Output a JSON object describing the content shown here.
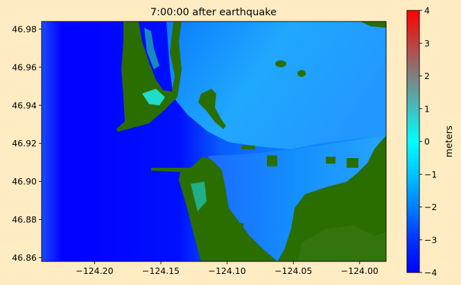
{
  "figure": {
    "title": "7:00:00 after earthquake",
    "background_color": "#ffecc2"
  },
  "chart_data": {
    "type": "heatmap",
    "title": "7:00:00 after earthquake",
    "xlabel": "",
    "ylabel": "",
    "xlim": [
      -124.24,
      -123.98
    ],
    "ylim": [
      46.858,
      46.984
    ],
    "xticks": [
      -124.2,
      -124.15,
      -124.1,
      -124.05,
      -124.0
    ],
    "xtick_labels": [
      "−124.20",
      "−124.15",
      "−124.10",
      "−124.05",
      "−124.00"
    ],
    "yticks": [
      46.86,
      46.88,
      46.9,
      46.92,
      46.94,
      46.96,
      46.98
    ],
    "ytick_labels": [
      "46.86",
      "46.88",
      "46.90",
      "46.92",
      "46.94",
      "46.96",
      "46.98"
    ],
    "grid": false,
    "land_color": "#2a6e00",
    "colorbar": {
      "label": "meters",
      "min": -4,
      "max": 4,
      "ticks": [
        -4,
        -3,
        -2,
        -1,
        0,
        1,
        2,
        3,
        4
      ],
      "tick_labels": [
        "−4",
        "−3",
        "−2",
        "−1",
        "0",
        "1",
        "2",
        "3",
        "4"
      ],
      "colors": [
        "#0000ff",
        "#0066ff",
        "#00ccff",
        "#00ffff",
        "#808080",
        "#ff0000"
      ]
    }
  }
}
